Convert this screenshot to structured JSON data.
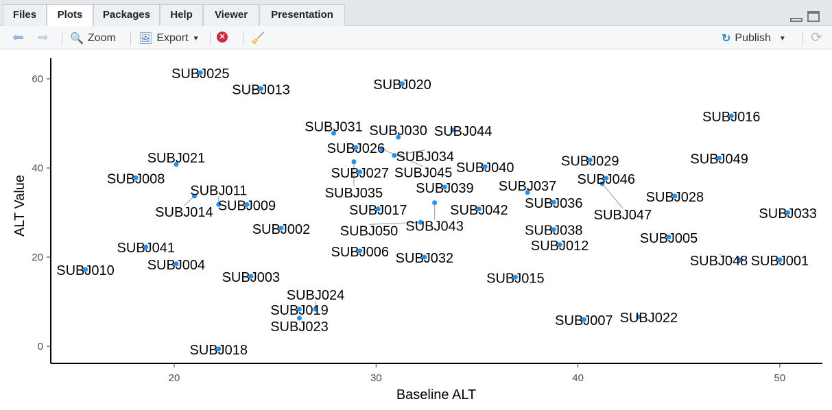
{
  "tabs": [
    "Files",
    "Plots",
    "Packages",
    "Help",
    "Viewer",
    "Presentation"
  ],
  "toolbar": {
    "zoom": "Zoom",
    "export": "Export",
    "publish": "Publish"
  },
  "colors": {
    "point": "#1e90ff"
  },
  "chart_data": {
    "type": "scatter",
    "title": "",
    "xlabel": "Baseline ALT",
    "ylabel": "ALT Value",
    "xlim": [
      14.2,
      52.1
    ],
    "ylim": [
      -3.8,
      63.5
    ],
    "xticks": [
      20,
      30,
      40,
      50
    ],
    "yticks": [
      0,
      20,
      40,
      60
    ],
    "grid": false,
    "points": [
      {
        "label": "SUBJ001",
        "x": 50.0,
        "y": 19.4
      },
      {
        "label": "SUBJ002",
        "x": 25.3,
        "y": 26.5
      },
      {
        "label": "SUBJ003",
        "x": 23.8,
        "y": 15.7
      },
      {
        "label": "SUBJ004",
        "x": 20.1,
        "y": 18.5
      },
      {
        "label": "SUBJ005",
        "x": 44.5,
        "y": 24.5
      },
      {
        "label": "SUBJ006",
        "x": 29.2,
        "y": 21.4
      },
      {
        "label": "SUBJ007",
        "x": 40.3,
        "y": 6.0
      },
      {
        "label": "SUBJ008",
        "x": 18.1,
        "y": 37.8
      },
      {
        "label": "SUBJ009",
        "x": 23.6,
        "y": 31.8
      },
      {
        "label": "SUBJ010",
        "x": 15.6,
        "y": 17.2
      },
      {
        "label": "SUBJ011",
        "x": 22.2,
        "y": 31.8
      },
      {
        "label": "SUBJ012",
        "x": 39.1,
        "y": 22.8
      },
      {
        "label": "SUBJ013",
        "x": 24.3,
        "y": 57.8
      },
      {
        "label": "SUBJ014",
        "x": 21.0,
        "y": 33.7
      },
      {
        "label": "SUBJ015",
        "x": 36.9,
        "y": 15.5
      },
      {
        "label": "SUBJ016",
        "x": 47.6,
        "y": 51.7
      },
      {
        "label": "SUBJ017",
        "x": 30.1,
        "y": 30.8
      },
      {
        "label": "SUBJ018",
        "x": 22.2,
        "y": -0.6
      },
      {
        "label": "SUBJ019",
        "x": 26.2,
        "y": 8.3
      },
      {
        "label": "SUBJ020",
        "x": 31.3,
        "y": 58.9
      },
      {
        "label": "SUBJ021",
        "x": 20.1,
        "y": 40.8
      },
      {
        "label": "SUBJ022",
        "x": 43.0,
        "y": 6.6
      },
      {
        "label": "SUBJ023",
        "x": 26.2,
        "y": 6.3
      },
      {
        "label": "SUBJ024",
        "x": 27.0,
        "y": 8.3
      },
      {
        "label": "SUBJ025",
        "x": 21.3,
        "y": 61.4
      },
      {
        "label": "SUBJ026",
        "x": 29.0,
        "y": 44.6
      },
      {
        "label": "SUBJ027",
        "x": 29.2,
        "y": 39.1
      },
      {
        "label": "SUBJ028",
        "x": 44.8,
        "y": 33.7
      },
      {
        "label": "SUBJ029",
        "x": 40.6,
        "y": 41.8
      },
      {
        "label": "SUBJ030",
        "x": 31.1,
        "y": 46.9
      },
      {
        "label": "SUBJ031",
        "x": 27.9,
        "y": 47.8
      },
      {
        "label": "SUBJ032",
        "x": 32.4,
        "y": 20.0
      },
      {
        "label": "SUBJ033",
        "x": 50.4,
        "y": 30.0
      },
      {
        "label": "SUBJ034",
        "x": 30.9,
        "y": 42.8
      },
      {
        "label": "SUBJ035",
        "x": 28.9,
        "y": 41.4
      },
      {
        "label": "SUBJ036",
        "x": 38.8,
        "y": 32.3
      },
      {
        "label": "SUBJ037",
        "x": 37.5,
        "y": 34.5
      },
      {
        "label": "SUBJ038",
        "x": 38.8,
        "y": 26.2
      },
      {
        "label": "SUBJ039",
        "x": 33.4,
        "y": 35.7
      },
      {
        "label": "SUBJ040",
        "x": 35.4,
        "y": 40.3
      },
      {
        "label": "SUBJ041",
        "x": 18.6,
        "y": 22.3
      },
      {
        "label": "SUBJ042",
        "x": 35.1,
        "y": 30.8
      },
      {
        "label": "SUBJ043",
        "x": 32.9,
        "y": 32.2
      },
      {
        "label": "SUBJ044",
        "x": 33.8,
        "y": 48.5
      },
      {
        "label": "SUBJ045",
        "x": 30.3,
        "y": 44.2
      },
      {
        "label": "SUBJ046",
        "x": 41.4,
        "y": 37.7
      },
      {
        "label": "SUBJ047",
        "x": 41.2,
        "y": 36.5
      },
      {
        "label": "SUBJ048",
        "x": 48.0,
        "y": 19.4
      },
      {
        "label": "SUBJ049",
        "x": 47.0,
        "y": 42.2
      },
      {
        "label": "SUBJ050",
        "x": 32.2,
        "y": 27.8
      }
    ]
  }
}
